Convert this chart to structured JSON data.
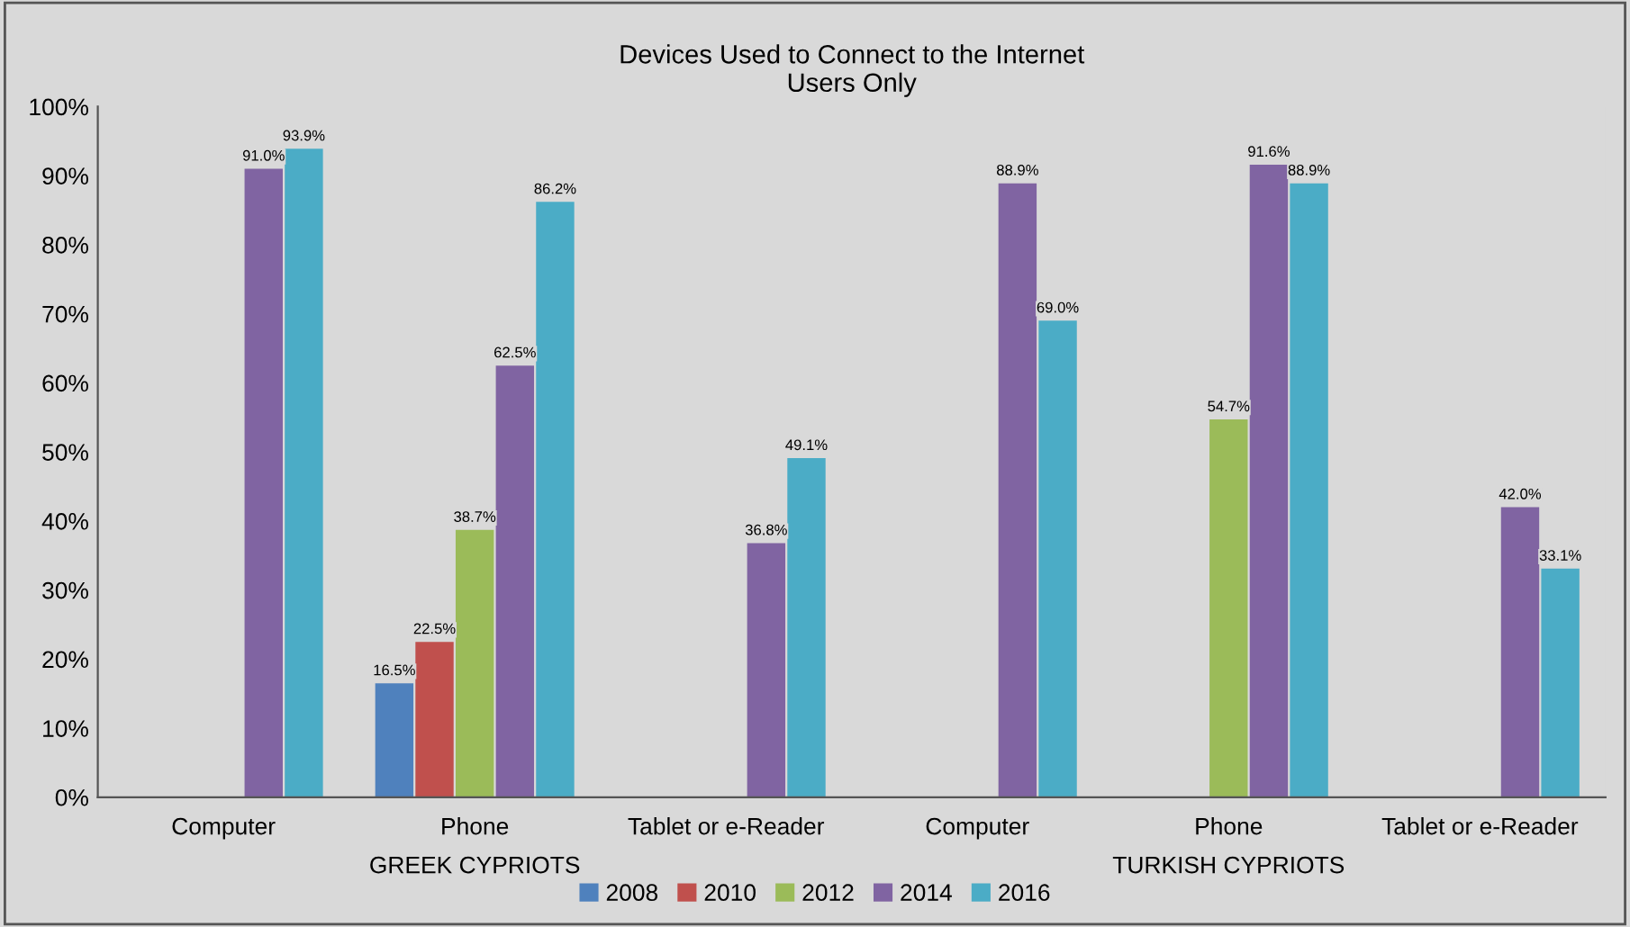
{
  "chart_data": {
    "type": "bar",
    "title": "Devices Used to Connect to the Internet",
    "subtitle": "Users Only",
    "categories": [
      "Computer",
      "Phone",
      "Tablet or e-Reader",
      "Computer",
      "Phone",
      "Tablet or e-Reader"
    ],
    "series": [
      {
        "name": "2008",
        "color": "#4f81bd",
        "values": [
          null,
          16.5,
          null,
          null,
          null,
          null
        ],
        "value_labels": [
          null,
          "16.5%",
          null,
          null,
          null,
          null
        ]
      },
      {
        "name": "2010",
        "color": "#c0504d",
        "values": [
          null,
          22.5,
          null,
          null,
          null,
          null
        ],
        "value_labels": [
          null,
          "22.5%",
          null,
          null,
          null,
          null
        ]
      },
      {
        "name": "2012",
        "color": "#9bbb59",
        "values": [
          null,
          38.7,
          null,
          null,
          54.7,
          null
        ],
        "value_labels": [
          null,
          "38.7%",
          null,
          null,
          "54.7%",
          null
        ]
      },
      {
        "name": "2014",
        "color": "#8064a2",
        "values": [
          91.0,
          62.5,
          36.8,
          88.9,
          91.6,
          42.0
        ],
        "value_labels": [
          "91.0%",
          "62.5%",
          "36.8%",
          "88.9%",
          "91.6%",
          "42.0%"
        ]
      },
      {
        "name": "2016",
        "color": "#4bacc6",
        "values": [
          93.9,
          86.2,
          49.1,
          69.0,
          88.9,
          33.1
        ],
        "value_labels": [
          "93.9%",
          "86.2%",
          "49.1%",
          "69.0%",
          "88.9%",
          "33.1%"
        ]
      }
    ],
    "ylim": [
      0,
      100
    ],
    "yticks": [
      {
        "value": 0,
        "label": "0%"
      },
      {
        "value": 10,
        "label": "10%"
      },
      {
        "value": 20,
        "label": "20%"
      },
      {
        "value": 30,
        "label": "30%"
      },
      {
        "value": 40,
        "label": "40%"
      },
      {
        "value": 50,
        "label": "50%"
      },
      {
        "value": 60,
        "label": "60%"
      },
      {
        "value": 70,
        "label": "70%"
      },
      {
        "value": 80,
        "label": "80%"
      },
      {
        "value": 90,
        "label": "90%"
      },
      {
        "value": 100,
        "label": "100%"
      }
    ],
    "annotations": [
      "GREEK CYPRIOTS",
      "TURKISH CYPRIOTS"
    ],
    "grid": false,
    "legend": "bottom"
  }
}
